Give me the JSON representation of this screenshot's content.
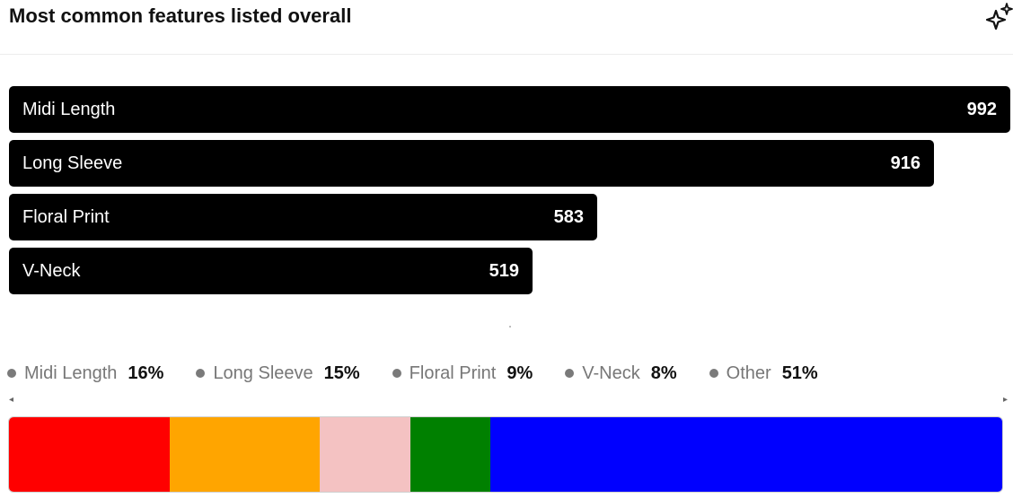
{
  "header": {
    "title": "Most common features listed overall",
    "sparkle_icon": "sparkle-icon"
  },
  "chart_data": [
    {
      "type": "bar",
      "orientation": "horizontal",
      "categories": [
        "Midi Length",
        "Long Sleeve",
        "Floral Print",
        "V-Neck"
      ],
      "values": [
        992,
        916,
        583,
        519
      ],
      "value_labels": [
        "992",
        "916",
        "583",
        "519"
      ],
      "bar_color": "#000000",
      "label_color": "#ffffff",
      "xlim": [
        0,
        992
      ]
    },
    {
      "type": "bar",
      "stacked": true,
      "orientation": "horizontal",
      "categories": [
        "Midi Length",
        "Long Sleeve",
        "Floral Print",
        "V-Neck",
        "Other"
      ],
      "values": [
        16,
        15,
        9,
        8,
        51
      ],
      "percent_labels": [
        "16%",
        "15%",
        "9%",
        "8%",
        "51%"
      ],
      "colors": [
        "#ff0000",
        "#ffa500",
        "#f4c2c2",
        "#008000",
        "#0000ff"
      ],
      "legend_placement": "top",
      "legend_dot_color": "#7a7a7a"
    }
  ],
  "scroll": {
    "left_arrow": "◂",
    "right_arrow": "▸"
  }
}
